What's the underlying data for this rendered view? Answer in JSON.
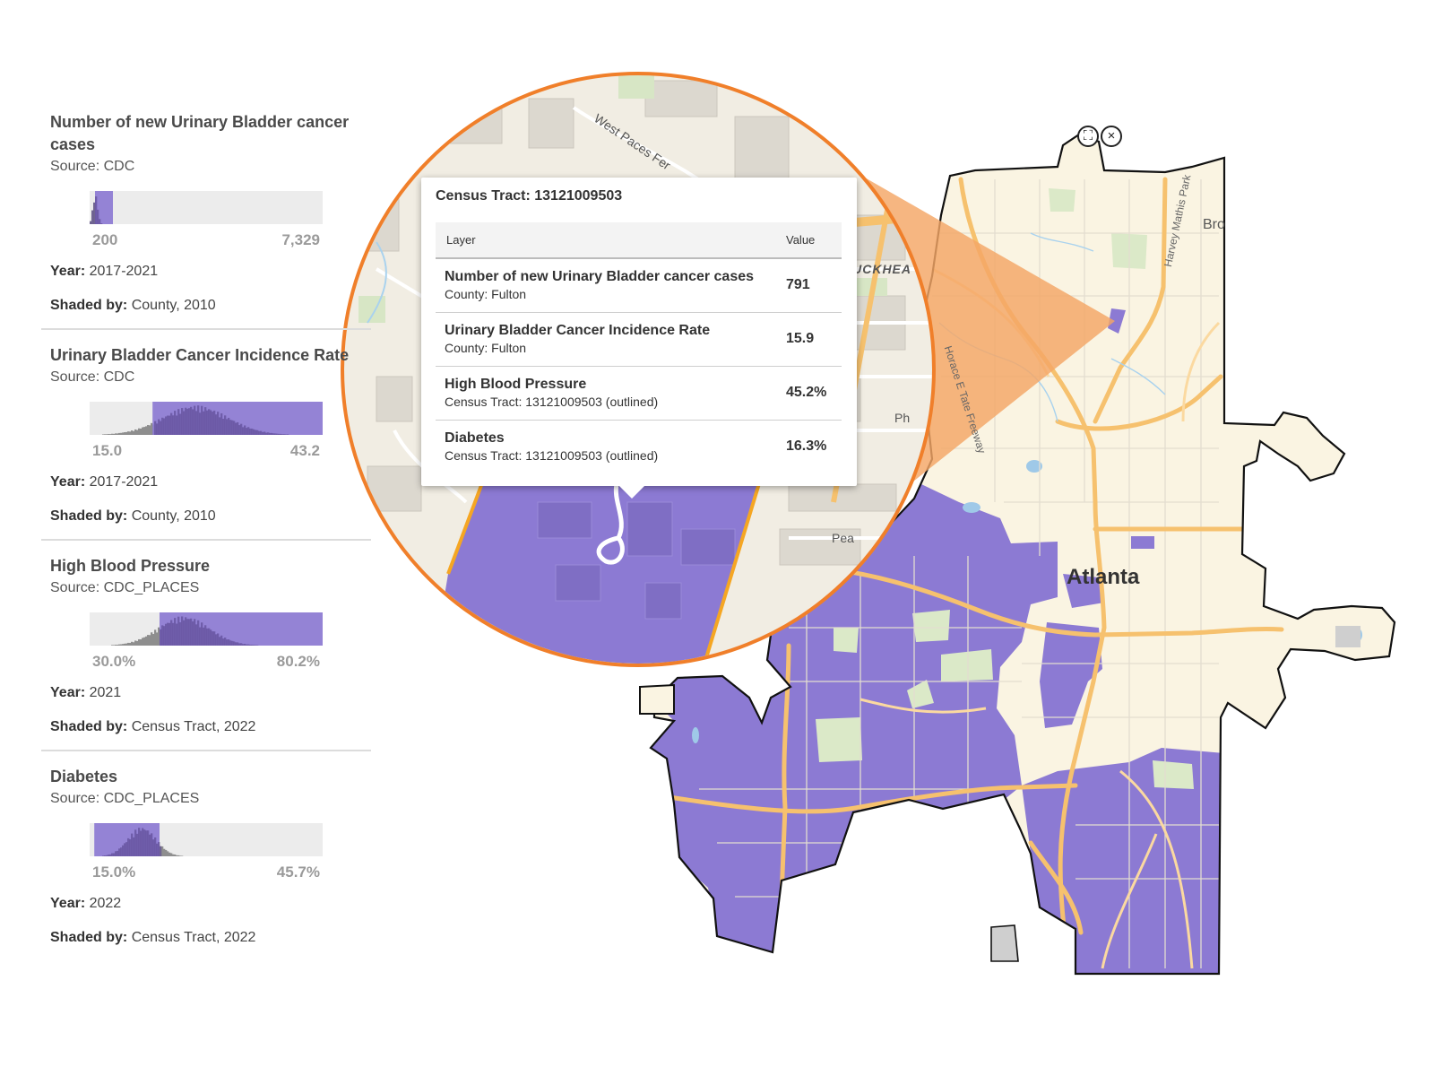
{
  "legend": [
    {
      "title": "Number of new Urinary Bladder cancer cases",
      "source": "Source: CDC",
      "min": "200",
      "max": "7,329",
      "distribution": [
        0.0,
        0.1
      ],
      "year_label": "Year:",
      "year": "2017-2021",
      "shaded_label": "Shaded by:",
      "shaded": "County, 2010"
    },
    {
      "title": "Urinary Bladder Cancer Incidence Rate",
      "source": "Source: CDC",
      "min": "15.0",
      "max": "43.2",
      "distribution": [
        0.27,
        1.0
      ],
      "year_label": "Year:",
      "year": "2017-2021",
      "shaded_label": "Shaded by:",
      "shaded": "County, 2010"
    },
    {
      "title": "High Blood Pressure",
      "source": "Source: CDC_PLACES",
      "min": "30.0%",
      "max": "80.2%",
      "distribution": [
        0.3,
        1.0
      ],
      "year_label": "Year:",
      "year": "2021",
      "shaded_label": "Shaded by:",
      "shaded": "Census Tract, 2022"
    },
    {
      "title": "Diabetes",
      "source": "Source: CDC_PLACES",
      "min": "15.0%",
      "max": "45.7%",
      "distribution": [
        0.02,
        0.3
      ],
      "year_label": "Year:",
      "year": "2022",
      "shaded_label": "Shaded by:",
      "shaded": "Census Tract, 2022"
    }
  ],
  "popup": {
    "title": "Census Tract: 13121009503",
    "col_layer": "Layer",
    "col_value": "Value",
    "rows": [
      {
        "name": "Number of new Urinary Bladder cancer cases",
        "sub": "County: Fulton",
        "value": "791"
      },
      {
        "name": "Urinary Bladder Cancer Incidence Rate",
        "sub": "County: Fulton",
        "value": "15.9"
      },
      {
        "name": "High Blood Pressure",
        "sub": "Census Tract: 13121009503 (outlined)",
        "value": "45.2%"
      },
      {
        "name": "Diabetes",
        "sub": "Census Tract: 13121009503 (outlined)",
        "value": "16.3%"
      }
    ]
  },
  "map": {
    "city_label": "Atlanta",
    "road_labels": [
      "Horace E Tate Freeway",
      "Harvey Mathis Park"
    ],
    "partial_labels": [
      "Bro",
      "Ph",
      "Pea",
      "BUCKHEA",
      "West Paces Fer"
    ],
    "colors": {
      "shaded": "#8c7ad3",
      "base": "#faf4e2",
      "highway": "#f6c16e",
      "lens_ring": "#f07f2a",
      "lens_cone": "#f4a665"
    },
    "controls": [
      "fullscreen-icon",
      "close-icon"
    ]
  }
}
